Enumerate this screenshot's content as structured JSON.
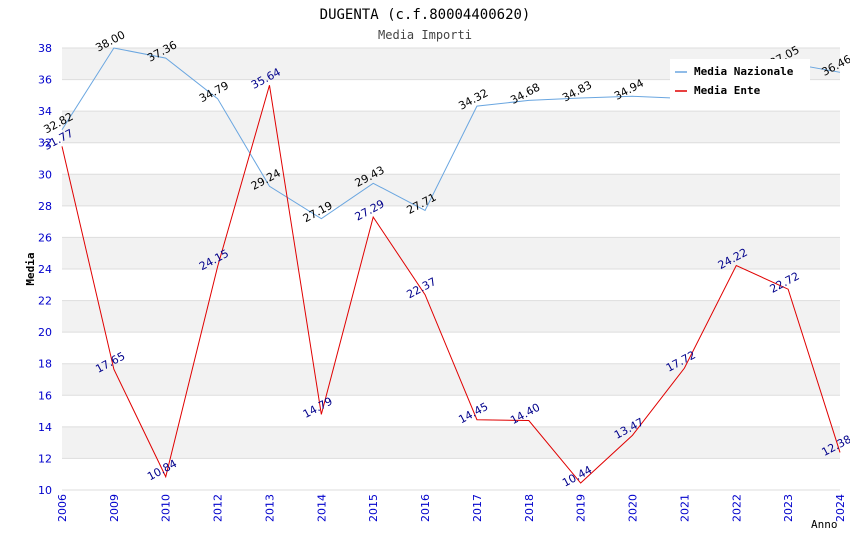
{
  "chart_data": {
    "type": "line",
    "title": "DUGENTA (c.f.80004400620)",
    "subtitle": "Media Importi",
    "xlabel": "Anno",
    "ylabel": "Media",
    "ylim": [
      10,
      38
    ],
    "yticks": [
      10,
      12,
      14,
      16,
      18,
      20,
      22,
      24,
      26,
      28,
      30,
      32,
      34,
      36,
      38
    ],
    "categories": [
      "2006",
      "2009",
      "2010",
      "2012",
      "2013",
      "2014",
      "2015",
      "2016",
      "2017",
      "2018",
      "2019",
      "2020",
      "2021",
      "2022",
      "2023",
      "2024"
    ],
    "legend_position": "top-right",
    "series": [
      {
        "name": "Media Nazionale",
        "color": "#6aa6e0",
        "label_color": "#000000",
        "values": [
          32.82,
          38.0,
          37.36,
          34.79,
          29.24,
          27.19,
          29.43,
          27.71,
          34.32,
          34.68,
          34.83,
          34.94,
          34.8,
          36.6,
          37.05,
          36.46
        ],
        "labels": [
          "32.82",
          "38.00",
          "37.36",
          "34.79",
          "29.24",
          "27.19",
          "29.43",
          "27.71",
          "34.32",
          "34.68",
          "34.83",
          "34.94",
          "",
          "",
          "37.05",
          "36.46"
        ]
      },
      {
        "name": "Media Ente",
        "color": "#e00000",
        "label_color": "#00008b",
        "values": [
          31.77,
          17.65,
          10.84,
          24.15,
          35.64,
          14.79,
          27.29,
          22.37,
          14.45,
          14.4,
          10.44,
          13.47,
          17.72,
          24.22,
          22.72,
          12.38
        ],
        "labels": [
          "31.77",
          "17.65",
          "10.84",
          "24.15",
          "35.64",
          "14.79",
          "27.29",
          "22.37",
          "14.45",
          "14.40",
          "10.44",
          "13.47",
          "17.72",
          "24.22",
          "22.72",
          "12.38"
        ]
      }
    ],
    "colors": {
      "band": "#f2f2f2",
      "gridline": "#dddddd",
      "tick_label": "#0000cc",
      "axis_label": "#000000",
      "title": "#000000",
      "subtitle": "#444444"
    }
  }
}
